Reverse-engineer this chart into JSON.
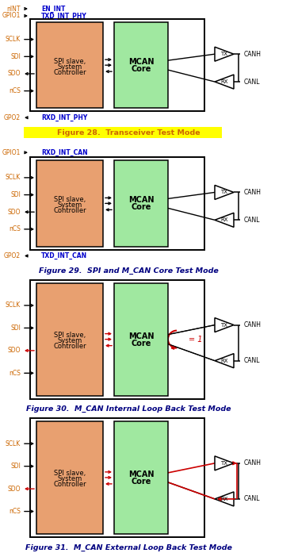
{
  "fig_width": 3.71,
  "fig_height": 6.97,
  "bg_color": "#ffffff",
  "diagrams": [
    {
      "id": 28,
      "title": "Figure 28.  Transceiver Test Mode",
      "title_bg": "#ffff00",
      "title_color": "#cc6600",
      "title_italic": false,
      "has_nINT": true,
      "has_GPIO1": true,
      "top_label1": "EN_INT",
      "top_label2": "TXD_INT_PHY",
      "has_GPO2": true,
      "bot_label": "RXD_INT_PHY",
      "bot_arrow_out": true,
      "loop_type": "none",
      "spi_color": "#e8a070",
      "mcan_color": "#a0e8a0"
    },
    {
      "id": 29,
      "title": "Figure 29.  SPI and M_CAN Core Test Mode",
      "title_bg": null,
      "title_color": "#000080",
      "title_italic": true,
      "has_nINT": false,
      "has_GPIO1": true,
      "top_label1": "RXD_INT_CAN",
      "top_label2": null,
      "has_GPO2": true,
      "bot_label": "TXD_INT_CAN",
      "bot_arrow_out": true,
      "loop_type": "none",
      "spi_color": "#e8a070",
      "mcan_color": "#a0e8a0"
    },
    {
      "id": 30,
      "title": "Figure 30.  M_CAN Internal Loop Back Test Mode",
      "title_bg": null,
      "title_color": "#000080",
      "title_italic": true,
      "has_nINT": false,
      "has_GPIO1": false,
      "top_label1": null,
      "top_label2": null,
      "has_GPO2": false,
      "bot_label": null,
      "bot_arrow_out": false,
      "loop_type": "internal",
      "spi_color": "#e8a070",
      "mcan_color": "#a0e8a0"
    },
    {
      "id": 31,
      "title": "Figure 31.  M_CAN External Loop Back Test Mode",
      "title_bg": null,
      "title_color": "#000080",
      "title_italic": true,
      "has_nINT": false,
      "has_GPIO1": false,
      "top_label1": null,
      "top_label2": null,
      "has_GPO2": false,
      "bot_label": null,
      "bot_arrow_out": false,
      "loop_type": "external",
      "spi_color": "#e8a070",
      "mcan_color": "#a0e8a0"
    }
  ]
}
